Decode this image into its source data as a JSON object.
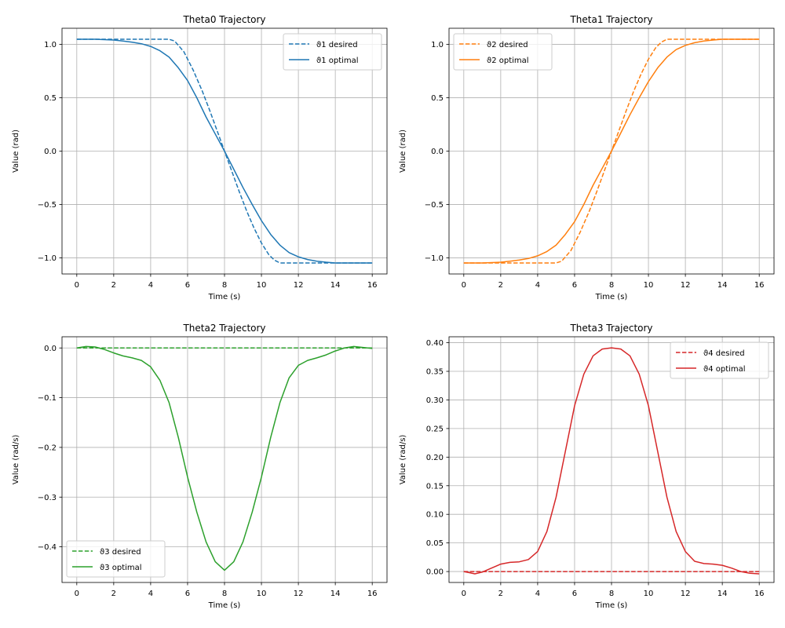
{
  "chart_data": [
    {
      "type": "line",
      "title": "Theta0 Trajectory",
      "xlabel": "Time (s)",
      "ylabel": "Value (rad)",
      "xlim": [
        -0.8,
        16.8
      ],
      "ylim": [
        -1.15,
        1.15
      ],
      "xticks": [
        0,
        2,
        4,
        6,
        8,
        10,
        12,
        14,
        16
      ],
      "yticks": [
        -1.0,
        -0.5,
        0.0,
        0.5,
        1.0
      ],
      "ytick_labels": [
        "−1.0",
        "−0.5",
        "0.0",
        "0.5",
        "1.0"
      ],
      "grid": true,
      "legend": "top-right",
      "color": "#1f77b4",
      "series": [
        {
          "name": "ϑ1 desired",
          "style": "dashed",
          "x": [
            0,
            1,
            2,
            3,
            4,
            5,
            5.3,
            5.8,
            6.3,
            6.8,
            7.2,
            7.6,
            8,
            8.4,
            8.8,
            9.2,
            9.6,
            10,
            10.4,
            10.7,
            11,
            12,
            13,
            14,
            15,
            16
          ],
          "y": [
            1.047,
            1.047,
            1.047,
            1.047,
            1.047,
            1.047,
            1.03,
            0.93,
            0.76,
            0.56,
            0.38,
            0.19,
            0,
            -0.19,
            -0.38,
            -0.56,
            -0.72,
            -0.86,
            -0.97,
            -1.02,
            -1.047,
            -1.047,
            -1.047,
            -1.047,
            -1.047,
            -1.047
          ]
        },
        {
          "name": "ϑ1 optimal",
          "style": "solid",
          "x": [
            0,
            1,
            2,
            2.5,
            3,
            3.5,
            4,
            4.5,
            5,
            5.5,
            6,
            6.5,
            7,
            7.5,
            8,
            8.5,
            9,
            9.5,
            10,
            10.5,
            11,
            11.5,
            12,
            12.5,
            13,
            13.5,
            14,
            15,
            16
          ],
          "y": [
            1.047,
            1.047,
            1.04,
            1.03,
            1.02,
            1.005,
            0.98,
            0.94,
            0.88,
            0.78,
            0.66,
            0.5,
            0.32,
            0.16,
            0,
            -0.17,
            -0.34,
            -0.5,
            -0.65,
            -0.78,
            -0.88,
            -0.95,
            -0.99,
            -1.015,
            -1.03,
            -1.04,
            -1.047,
            -1.047,
            -1.047
          ]
        }
      ]
    },
    {
      "type": "line",
      "title": "Theta1 Trajectory",
      "xlabel": "Time (s)",
      "ylabel": "Value (rad)",
      "xlim": [
        -0.8,
        16.8
      ],
      "ylim": [
        -1.15,
        1.15
      ],
      "xticks": [
        0,
        2,
        4,
        6,
        8,
        10,
        12,
        14,
        16
      ],
      "yticks": [
        -1.0,
        -0.5,
        0.0,
        0.5,
        1.0
      ],
      "ytick_labels": [
        "−1.0",
        "−0.5",
        "0.0",
        "0.5",
        "1.0"
      ],
      "grid": true,
      "legend": "top-left",
      "color": "#ff7f0e",
      "series": [
        {
          "name": "ϑ2 desired",
          "style": "dashed",
          "x": [
            0,
            1,
            2,
            3,
            4,
            5,
            5.3,
            5.8,
            6.3,
            6.8,
            7.2,
            7.6,
            8,
            8.4,
            8.8,
            9.2,
            9.6,
            10,
            10.4,
            10.7,
            11,
            12,
            13,
            14,
            15,
            16
          ],
          "y": [
            -1.047,
            -1.047,
            -1.047,
            -1.047,
            -1.047,
            -1.047,
            -1.03,
            -0.93,
            -0.76,
            -0.56,
            -0.38,
            -0.19,
            0,
            0.19,
            0.38,
            0.56,
            0.72,
            0.86,
            0.97,
            1.02,
            1.047,
            1.047,
            1.047,
            1.047,
            1.047,
            1.047
          ]
        },
        {
          "name": "ϑ2 optimal",
          "style": "solid",
          "x": [
            0,
            1,
            2,
            2.5,
            3,
            3.5,
            4,
            4.5,
            5,
            5.5,
            6,
            6.5,
            7,
            7.5,
            8,
            8.5,
            9,
            9.5,
            10,
            10.5,
            11,
            11.5,
            12,
            12.5,
            13,
            13.5,
            14,
            15,
            16
          ],
          "y": [
            -1.047,
            -1.047,
            -1.04,
            -1.03,
            -1.02,
            -1.005,
            -0.98,
            -0.94,
            -0.88,
            -0.78,
            -0.66,
            -0.5,
            -0.32,
            -0.16,
            0,
            0.17,
            0.34,
            0.5,
            0.65,
            0.78,
            0.88,
            0.95,
            0.99,
            1.015,
            1.03,
            1.04,
            1.047,
            1.047,
            1.047
          ]
        }
      ]
    },
    {
      "type": "line",
      "title": "Theta2 Trajectory",
      "xlabel": "Time (s)",
      "ylabel": "Value (rad/s)",
      "xlim": [
        -0.8,
        16.8
      ],
      "ylim": [
        -0.4717,
        0.0225
      ],
      "xticks": [
        0,
        2,
        4,
        6,
        8,
        10,
        12,
        14,
        16
      ],
      "yticks": [
        -0.4,
        -0.3,
        -0.2,
        -0.1,
        0.0
      ],
      "ytick_labels": [
        "−0.4",
        "−0.3",
        "−0.2",
        "−0.1",
        "0.0"
      ],
      "grid": true,
      "legend": "bottom-left",
      "color": "#2ca02c",
      "series": [
        {
          "name": "ϑ3 desired",
          "style": "dashed",
          "x": [
            0,
            16
          ],
          "y": [
            0,
            0
          ]
        },
        {
          "name": "ϑ3 optimal",
          "style": "solid",
          "x": [
            0,
            0.5,
            1,
            1.5,
            2,
            2.5,
            3,
            3.5,
            4,
            4.5,
            5,
            5.5,
            6,
            6.5,
            7,
            7.5,
            8,
            8.5,
            9,
            9.5,
            10,
            10.5,
            11,
            11.5,
            12,
            12.5,
            13,
            13.5,
            14,
            14.5,
            15,
            15.5,
            16
          ],
          "y": [
            0,
            0.003,
            0.002,
            -0.003,
            -0.01,
            -0.016,
            -0.02,
            -0.025,
            -0.038,
            -0.065,
            -0.11,
            -0.18,
            -0.26,
            -0.33,
            -0.39,
            -0.43,
            -0.447,
            -0.43,
            -0.39,
            -0.33,
            -0.26,
            -0.18,
            -0.11,
            -0.06,
            -0.035,
            -0.025,
            -0.02,
            -0.014,
            -0.006,
            0,
            0.003,
            0.001,
            -0.001
          ]
        }
      ]
    },
    {
      "type": "line",
      "title": "Theta3 Trajectory",
      "xlabel": "Time (s)",
      "ylabel": "Value (rad/s)",
      "xlim": [
        -0.8,
        16.8
      ],
      "ylim": [
        -0.0191,
        0.4104
      ],
      "xticks": [
        0,
        2,
        4,
        6,
        8,
        10,
        12,
        14,
        16
      ],
      "yticks": [
        0.0,
        0.05,
        0.1,
        0.15,
        0.2,
        0.25,
        0.3,
        0.35,
        0.4
      ],
      "ytick_labels": [
        "0.00",
        "0.05",
        "0.10",
        "0.15",
        "0.20",
        "0.25",
        "0.30",
        "0.35",
        "0.40"
      ],
      "grid": true,
      "legend": "top-right",
      "color": "#d62728",
      "series": [
        {
          "name": "ϑ4 desired",
          "style": "dashed",
          "x": [
            0,
            16
          ],
          "y": [
            0,
            0
          ]
        },
        {
          "name": "ϑ4 optimal",
          "style": "solid",
          "x": [
            0,
            0.3,
            0.6,
            1,
            1.5,
            2,
            2.5,
            3,
            3.5,
            4,
            4.5,
            5,
            5.5,
            6,
            6.5,
            7,
            7.5,
            8,
            8.5,
            9,
            9.5,
            10,
            10.5,
            11,
            11.5,
            12,
            12.5,
            13,
            13.5,
            14,
            14.5,
            15,
            15.5,
            16
          ],
          "y": [
            0,
            -0.002,
            -0.004,
            -0.001,
            0.006,
            0.013,
            0.016,
            0.017,
            0.021,
            0.035,
            0.07,
            0.13,
            0.21,
            0.29,
            0.345,
            0.377,
            0.389,
            0.391,
            0.389,
            0.377,
            0.345,
            0.29,
            0.21,
            0.13,
            0.07,
            0.035,
            0.018,
            0.014,
            0.013,
            0.011,
            0.006,
            0,
            -0.003,
            -0.004
          ]
        }
      ]
    }
  ]
}
